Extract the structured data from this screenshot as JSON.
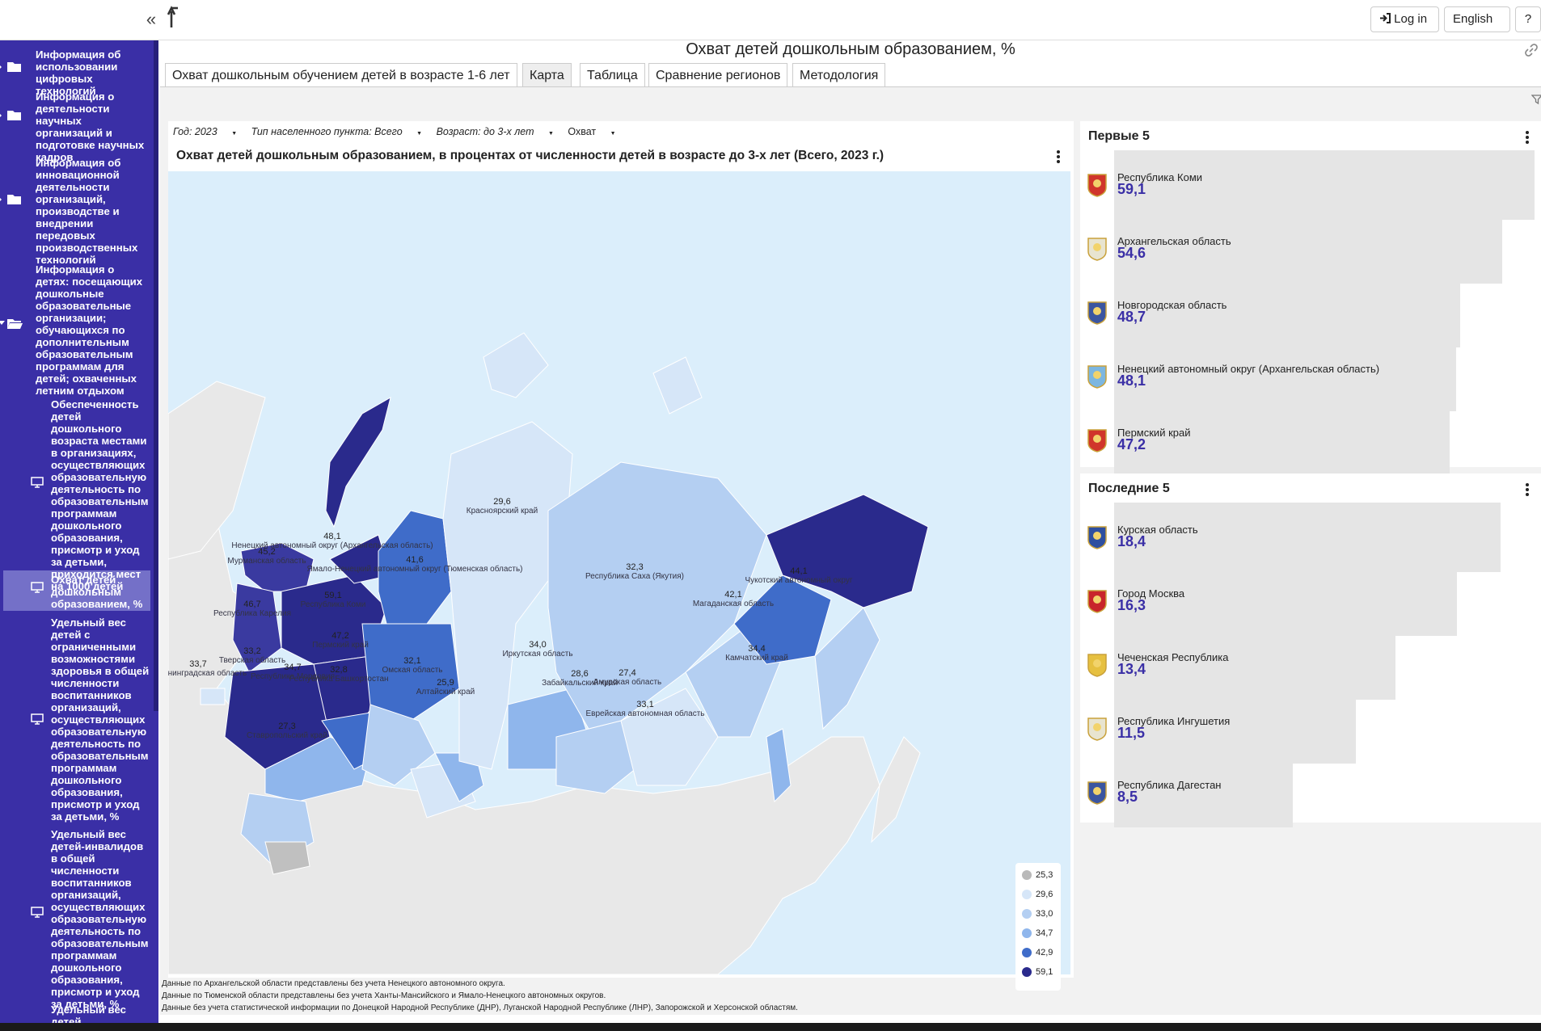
{
  "topbar": {
    "collapse_icon": "«",
    "login_label": "Log in",
    "language_label": "English",
    "help_label": "?"
  },
  "sidebar": {
    "items": [
      {
        "label": "Информация об использовании цифровых технологий",
        "icon": "folder-icon"
      },
      {
        "label": "Информация о деятельности научных организаций и подготовке научных кадров",
        "icon": "folder-icon"
      },
      {
        "label": "Информация об инновационной деятельности организаций, производстве и внедрении передовых производственных технологий",
        "icon": "folder-icon"
      },
      {
        "label": "Информация о детях: посещающих дошкольные образовательные организации; обучающихся по дополнительным образовательным программам для детей; охваченных летним отдыхом",
        "icon": "folder-open-icon"
      }
    ],
    "subitems": [
      {
        "label": "Обеспеченность детей дошкольного возраста местами в организациях, осуществляющих образовательную деятельность по образовательным программам дошкольного образования, присмотр и уход за детьми, приходится мест на 1000 детей"
      },
      {
        "label": "Охват детей дошкольным образованием, %",
        "selected": true
      },
      {
        "label": "Удельный вес детей с ограниченными возможностями здоровья в общей численности воспитанников организаций, осуществляющих образовательную деятельность по образовательным программам дошкольного образования, присмотр и уход за детьми, %"
      },
      {
        "label": "Удельный вес детей-инвалидов в общей численности воспитанников организаций, осуществляющих образовательную деятельность по образовательным программам дошкольного образования, присмотр и уход за детьми, %"
      },
      {
        "label": "Удельный вес детей"
      }
    ]
  },
  "page": {
    "title": "Охват детей дошкольным образованием, %",
    "tabs": [
      "Охват дошкольным обучением детей в возрасте 1-6 лет",
      "Карта",
      "Таблица",
      "Сравнение регионов",
      "Методология"
    ],
    "active_tab": "Карта"
  },
  "filters": [
    "Год: 2023",
    "Тип населенного пункта: Всего",
    "Возраст: до 3-х лет",
    "Охват"
  ],
  "map": {
    "title": "Охват детей дошкольным образованием, в процентах от численности детей в возрасте до 3-х лет (Всего, 2023 г.)",
    "legend": [
      {
        "value": "25,3",
        "color": "#b9b9b9"
      },
      {
        "value": "29,6",
        "color": "#d6e6f8"
      },
      {
        "value": "33,0",
        "color": "#b4cff2"
      },
      {
        "value": "34,7",
        "color": "#8fb6ec"
      },
      {
        "value": "42,9",
        "color": "#3f6cc9"
      },
      {
        "value": "59,1",
        "color": "#2a2a8c"
      }
    ],
    "labels": [
      {
        "value": "45,2",
        "name": "Мурманская область"
      },
      {
        "value": "48,1",
        "name": "Ненецкий автономный округ (Архангельская область)"
      },
      {
        "value": "41,6",
        "name": "Ямало-Ненецкий автономный округ (Тюменская область)"
      },
      {
        "value": "59,1",
        "name": "Республика Коми"
      },
      {
        "value": "29,6",
        "name": "Красноярский край"
      },
      {
        "value": "32,3",
        "name": "Республика Саха (Якутия)"
      },
      {
        "value": "44,1",
        "name": "Чукотский автономный округ"
      },
      {
        "value": "42,1",
        "name": "Магаданская область"
      },
      {
        "value": "46,7",
        "name": "Республика Карелия"
      },
      {
        "value": "47,2",
        "name": "Пермский край"
      },
      {
        "value": "33,2",
        "name": "Тверская область"
      },
      {
        "value": "34,7",
        "name": "Республика Мордовия"
      },
      {
        "value": "32,8",
        "name": "Республика Башкортостан"
      },
      {
        "value": "32,1",
        "name": "Омская область"
      },
      {
        "value": "25,9",
        "name": "Алтайский край"
      },
      {
        "value": "34,0",
        "name": "Иркутская область"
      },
      {
        "value": "28,6",
        "name": "Забайкальский край"
      },
      {
        "value": "27,4",
        "name": "Амурская область"
      },
      {
        "value": "33,1",
        "name": "Еврейская автономная область"
      },
      {
        "value": "34,4",
        "name": "Камчатский край"
      },
      {
        "value": "33,7",
        "name": "Калининградская область"
      },
      {
        "value": "27,3",
        "name": "Ставропольский край"
      }
    ]
  },
  "top5": {
    "title": "Первые 5",
    "items": [
      {
        "name": "Республика Коми",
        "value": "59,1",
        "share": 1.0
      },
      {
        "name": "Архангельская область",
        "value": "54,6",
        "share": 0.924
      },
      {
        "name": "Новгородская область",
        "value": "48,7",
        "share": 0.824
      },
      {
        "name": "Ненецкий автономный округ (Архангельская область)",
        "value": "48,1",
        "share": 0.814
      },
      {
        "name": "Пермский край",
        "value": "47,2",
        "share": 0.799
      }
    ]
  },
  "bottom5": {
    "title": "Последние 5",
    "items": [
      {
        "name": "Курская область",
        "value": "18,4",
        "share": 0.92
      },
      {
        "name": "Город Москва",
        "value": "16,3",
        "share": 0.815
      },
      {
        "name": "Чеченская Республика",
        "value": "13,4",
        "share": 0.67
      },
      {
        "name": "Республика Ингушетия",
        "value": "11,5",
        "share": 0.575
      },
      {
        "name": "Республика Дагестан",
        "value": "8,5",
        "share": 0.425
      }
    ]
  },
  "notes": [
    "Данные по Архангельской области представлены без учета Ненецкого автономного округа.",
    "Данные по Тюменской области представлены без учета Ханты-Мансийского и Ямало-Ненецкого автономных округов.",
    "Данные без учета статистической информации по Донецкой Народной Республике (ДНР), Луганской Народной Республике (ЛНР), Запорожской и Херсонской областям."
  ]
}
